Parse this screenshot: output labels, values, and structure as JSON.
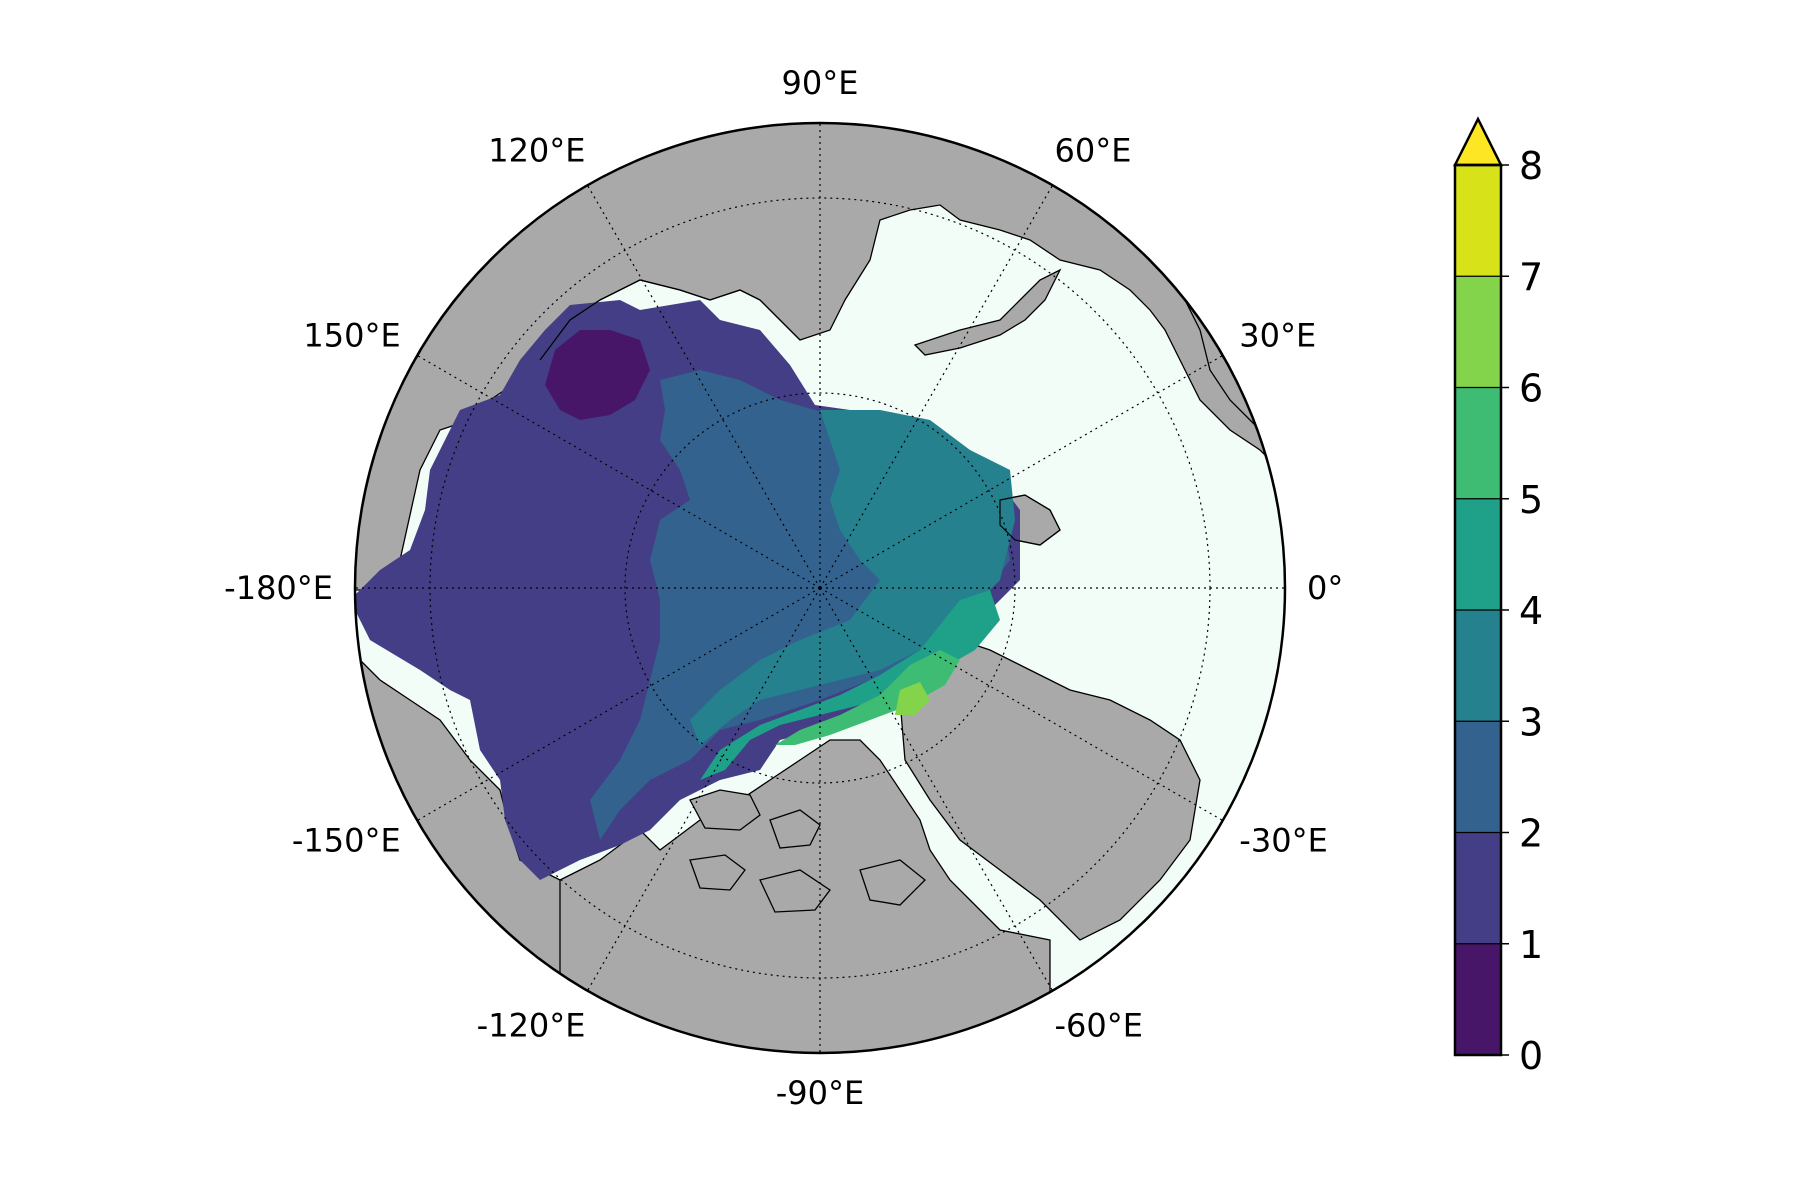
{
  "map": {
    "projection": "north-polar-stereographic",
    "ocean_color": "#f2fdf8",
    "land_color": "#a9a9a9",
    "coastline_color": "#000000",
    "gridline_style": "dotted",
    "latitude_circles": [
      80,
      70
    ],
    "longitude_labels": [
      {
        "lon": 90,
        "text": "90°E"
      },
      {
        "lon": 60,
        "text": "60°E"
      },
      {
        "lon": 30,
        "text": "30°E"
      },
      {
        "lon": 0,
        "text": "0°"
      },
      {
        "lon": -30,
        "text": "-30°E"
      },
      {
        "lon": -60,
        "text": "-60°E"
      },
      {
        "lon": -90,
        "text": "-90°E"
      },
      {
        "lon": -120,
        "text": "-120°E"
      },
      {
        "lon": -150,
        "text": "-150°E"
      },
      {
        "lon": -180,
        "text": "-180°E"
      },
      {
        "lon": 150,
        "text": "150°E"
      },
      {
        "lon": 120,
        "text": "120°E"
      }
    ]
  },
  "chart_data": {
    "type": "heatmap",
    "title": "",
    "field": "filled contours over Arctic Ocean sea-ice region (Pacific/Siberian sector), highest values north of Greenland and the Canadian Archipelago",
    "levels": [
      0,
      1,
      2,
      3,
      4,
      5,
      6,
      7,
      8
    ],
    "level_colors": [
      "#481668",
      "#433e85",
      "#32628d",
      "#26818e",
      "#1fa088",
      "#3fbc73",
      "#84d44b",
      "#d8e219"
    ],
    "extend_color": "#fde725",
    "extend": "max",
    "colorbar": {
      "orientation": "vertical",
      "placement": "right",
      "tick_labels": [
        "0",
        "1",
        "2",
        "3",
        "4",
        "5",
        "6",
        "7",
        "8"
      ]
    }
  }
}
